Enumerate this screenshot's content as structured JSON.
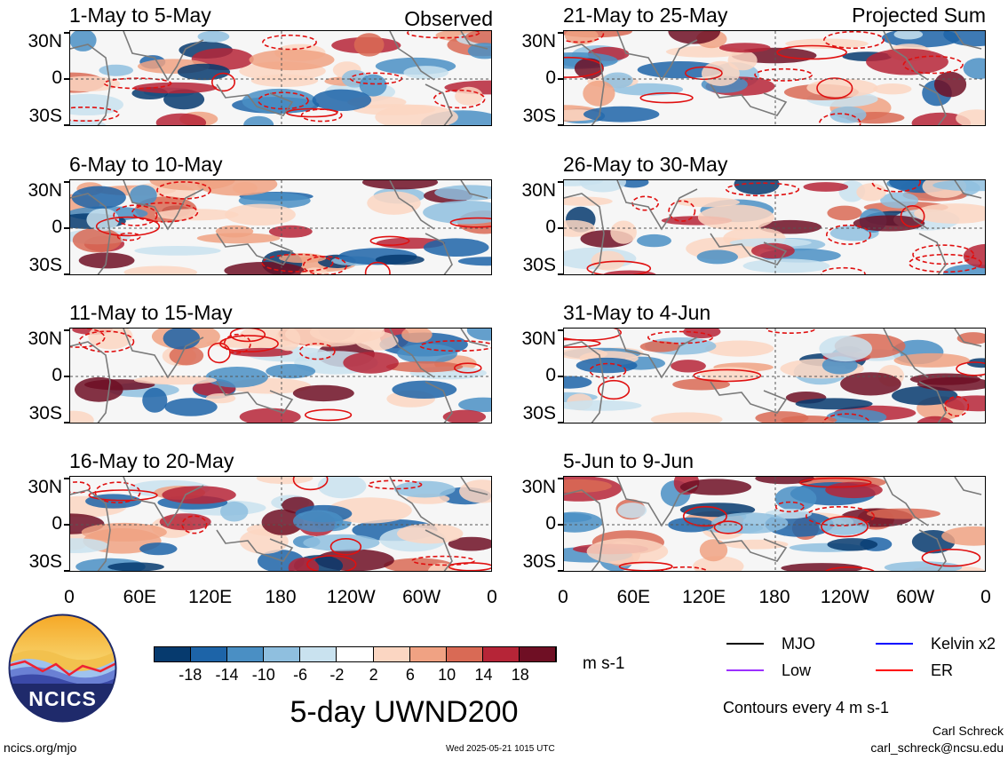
{
  "columns": {
    "left": "Observed",
    "right": "Projected Sum"
  },
  "panels_left": [
    {
      "title": "1-May to 5-May"
    },
    {
      "title": "6-May to 10-May"
    },
    {
      "title": "11-May to 15-May"
    },
    {
      "title": "16-May to 20-May"
    }
  ],
  "panels_right": [
    {
      "title": "21-May to 25-May"
    },
    {
      "title": "26-May to 30-May"
    },
    {
      "title": "31-May to 4-Jun"
    },
    {
      "title": "5-Jun to 9-Jun"
    }
  ],
  "y_ticks": [
    "30N",
    "0",
    "30S"
  ],
  "x_ticks": [
    "0",
    "60E",
    "120E",
    "180",
    "120W",
    "60W",
    "0"
  ],
  "colorbar": {
    "labels": [
      "-18",
      "-14",
      "-10",
      "-6",
      "-2",
      "2",
      "6",
      "10",
      "14",
      "18"
    ],
    "units": "m s-1",
    "colors": [
      "#063a6e",
      "#1d64a8",
      "#4a8fc4",
      "#8fbfdf",
      "#c9e2ef",
      "#ffffff",
      "#fbd6c2",
      "#f0a283",
      "#d96a55",
      "#b62537",
      "#6f0f24"
    ]
  },
  "chart_data": {
    "type": "heatmap",
    "title": "5-day UWND200",
    "variable": "200-hPa zonal wind anomaly",
    "units": "m s-1",
    "xlim": [
      "0",
      "0"
    ],
    "ylim": [
      "30S",
      "30N"
    ],
    "color_levels": [
      -18,
      -14,
      -10,
      -6,
      -2,
      2,
      6,
      10,
      14,
      18
    ],
    "contour_interval": "4 m s-1",
    "panels": [
      {
        "title": "1-May to 5-May",
        "column": "Observed"
      },
      {
        "title": "6-May to 10-May",
        "column": "Observed"
      },
      {
        "title": "11-May to 15-May",
        "column": "Observed"
      },
      {
        "title": "16-May to 20-May",
        "column": "Observed"
      },
      {
        "title": "21-May to 25-May",
        "column": "Projected Sum"
      },
      {
        "title": "26-May to 30-May",
        "column": "Projected Sum"
      },
      {
        "title": "31-May to 4-Jun",
        "column": "Projected Sum"
      },
      {
        "title": "5-Jun to 9-Jun",
        "column": "Projected Sum"
      }
    ]
  },
  "legend": {
    "items": [
      {
        "label": "MJO",
        "color": "#000000"
      },
      {
        "label": "Kelvin x2",
        "color": "#0000ff"
      },
      {
        "label": "Low",
        "color": "#9b30ff"
      },
      {
        "label": "ER",
        "color": "#ff0000"
      }
    ],
    "contours_note": "Contours every 4 m s-1"
  },
  "main_title": "5-day UWND200",
  "logo_text": "NCICS",
  "footer": {
    "url": "ncics.org/mjo",
    "timestamp": "Wed 2025-05-21 1015 UTC",
    "author": "Carl Schreck",
    "email": "carl_schreck@ncsu.edu"
  }
}
